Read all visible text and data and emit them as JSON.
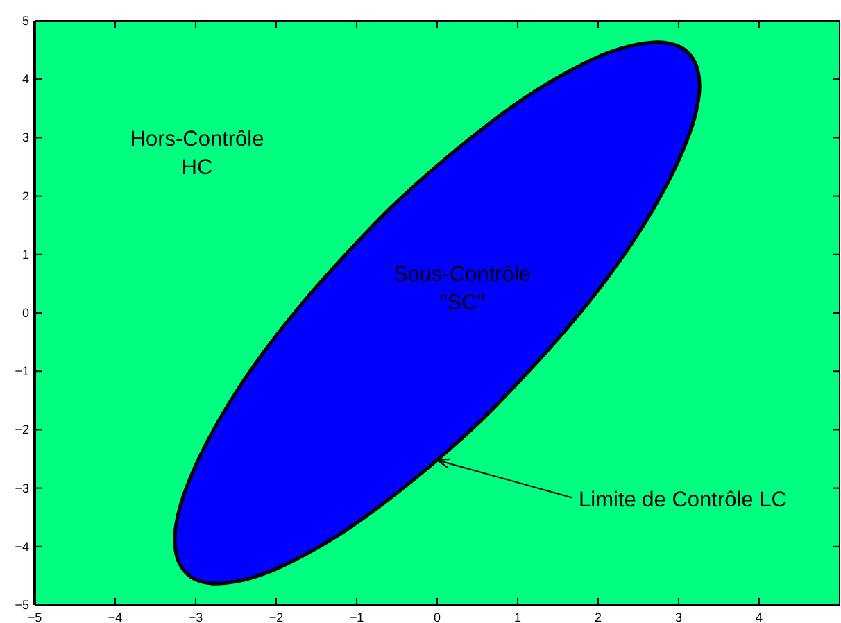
{
  "chart_data": {
    "type": "area",
    "xlim": [
      -5,
      5
    ],
    "ylim": [
      -5,
      5
    ],
    "xticks": [
      -5,
      -4,
      -3,
      -2,
      -1,
      0,
      1,
      2,
      3,
      4
    ],
    "yticks": [
      -5,
      -4,
      -3,
      -2,
      -1,
      0,
      1,
      2,
      3,
      4,
      5
    ],
    "series": [
      {
        "color": "#0000ff",
        "x": [
          3.26,
          3.21,
          3.06,
          2.82,
          2.5,
          2.1,
          1.63,
          1.11,
          0.57,
          0,
          -0.57,
          -1.11,
          -1.63,
          -2.1,
          -2.5,
          -2.82,
          -3.06,
          -3.21,
          -3.26,
          -3.21,
          -3.06,
          -2.82,
          -2.5,
          -2.1,
          -1.63,
          -1.11,
          -0.57,
          0,
          0.57,
          1.11,
          1.63,
          2.1,
          2.5,
          2.82,
          3.06,
          3.21
        ],
        "values": [
          3.89,
          4.27,
          4.52,
          4.63,
          4.6,
          4.44,
          4.13,
          3.7,
          3.16,
          2.52,
          1.81,
          1.04,
          0.24,
          -0.57,
          -1.36,
          -2.11,
          -2.8,
          -3.4,
          -3.89,
          -4.27,
          -4.52,
          -4.63,
          -4.6,
          -4.44,
          -4.13,
          -3.7,
          -3.16,
          -2.52,
          -1.81,
          -1.04,
          -0.24,
          0.57,
          1.36,
          2.11,
          2.8,
          3.4
        ]
      }
    ],
    "annotations": [
      "Hors-Contrôle\nHC",
      "Sous-Contrôle\n\"SC\"",
      {
        "text": "Limite de Contrôle LC",
        "x": 0,
        "y": -2.52
      }
    ]
  }
}
